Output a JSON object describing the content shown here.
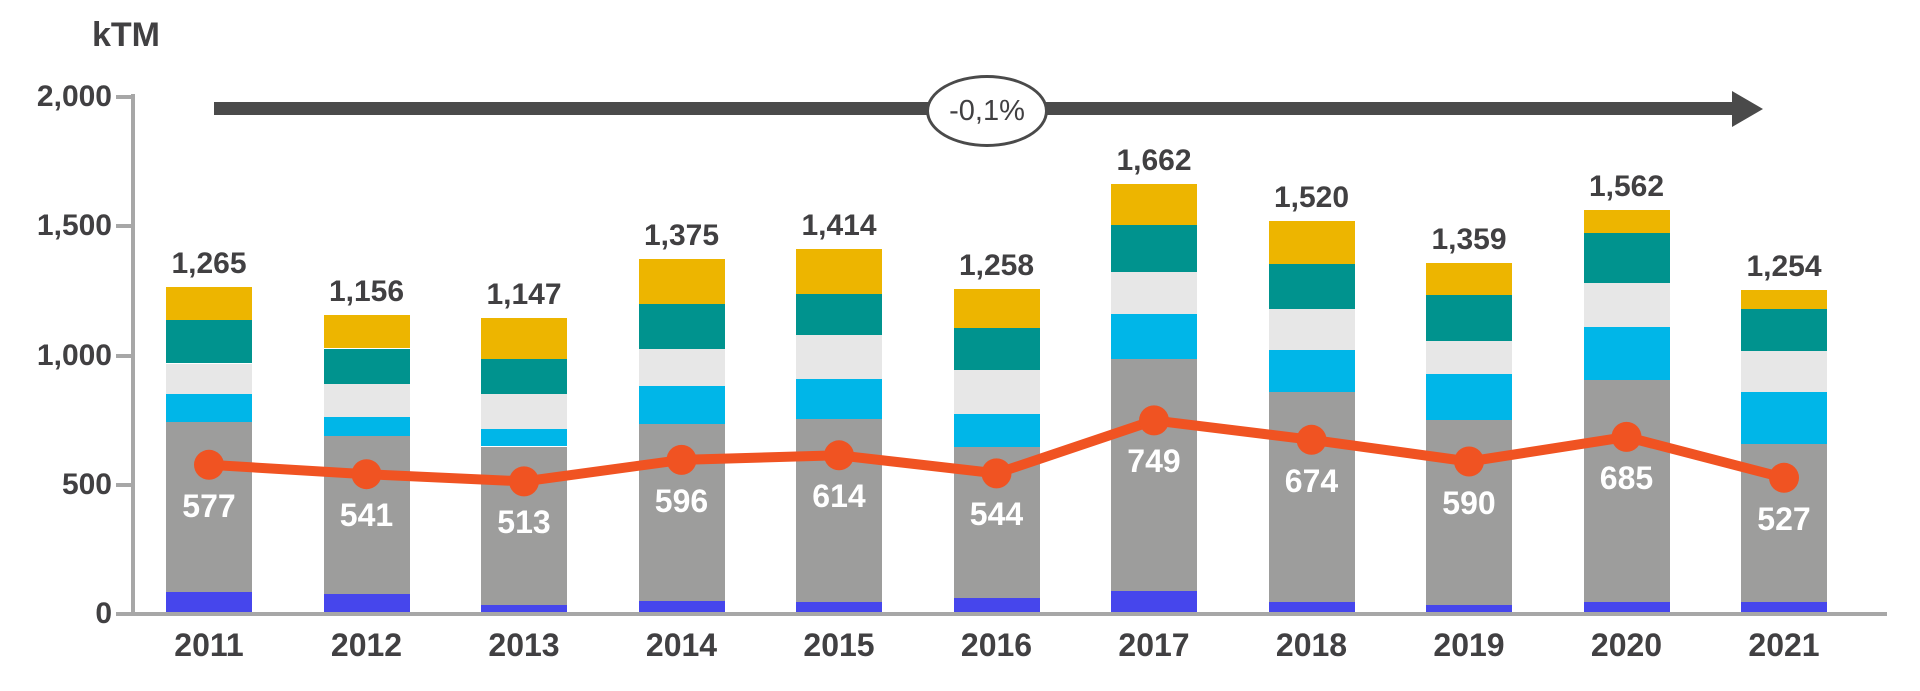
{
  "chart_data": {
    "type": "bar",
    "stacked": true,
    "title": "kTM",
    "legend": "none",
    "grid": false,
    "categories": [
      "2011",
      "2012",
      "2013",
      "2014",
      "2015",
      "2016",
      "2017",
      "2018",
      "2019",
      "2020",
      "2021"
    ],
    "series": [
      {
        "name": "blue",
        "color": "#4646EC",
        "values": [
          86,
          78,
          35,
          51,
          47,
          63,
          90,
          47,
          35,
          47,
          47
        ]
      },
      {
        "name": "gray",
        "color": "#9D9D9C",
        "values": [
          656,
          610,
          613,
          683,
          707,
          582,
          898,
          812,
          715,
          859,
          609
        ]
      },
      {
        "name": "cyan",
        "color": "#00B6E8",
        "values": [
          110,
          74,
          67,
          149,
          156,
          128,
          172,
          164,
          180,
          203,
          203
        ]
      },
      {
        "name": "lightgray",
        "color": "#E7E7E7",
        "values": [
          117,
          128,
          137,
          144,
          168,
          172,
          164,
          157,
          125,
          172,
          157
        ]
      },
      {
        "name": "teal",
        "color": "#00938E",
        "values": [
          168,
          137,
          136,
          172,
          160,
          160,
          180,
          175,
          179,
          192,
          164
        ]
      },
      {
        "name": "yellow",
        "color": "#EDB500",
        "values": [
          128,
          129,
          159,
          176,
          176,
          153,
          158,
          165,
          125,
          89,
          74
        ]
      }
    ],
    "totals": [
      1265,
      1156,
      1147,
      1375,
      1414,
      1258,
      1662,
      1520,
      1359,
      1562,
      1254
    ],
    "total_labels": [
      "1,265",
      "1,156",
      "1,147",
      "1,375",
      "1,414",
      "1,258",
      "1,662",
      "1,520",
      "1,359",
      "1,562",
      "1,254"
    ],
    "line_series": {
      "name": "line",
      "color": "#F05322",
      "values": [
        577,
        541,
        513,
        596,
        614,
        544,
        749,
        674,
        590,
        685,
        527
      ]
    },
    "y_axis": {
      "label": "kTM",
      "range": [
        0,
        2000
      ],
      "ticks": [
        0,
        500,
        1000,
        1500,
        2000
      ],
      "tick_labels": [
        "0",
        "500",
        "1,000",
        "1,500",
        "2,000"
      ]
    },
    "x_axis": {
      "label": ""
    },
    "trend_annotation": {
      "label": "-0,1%",
      "shape": "arrow-right"
    }
  }
}
